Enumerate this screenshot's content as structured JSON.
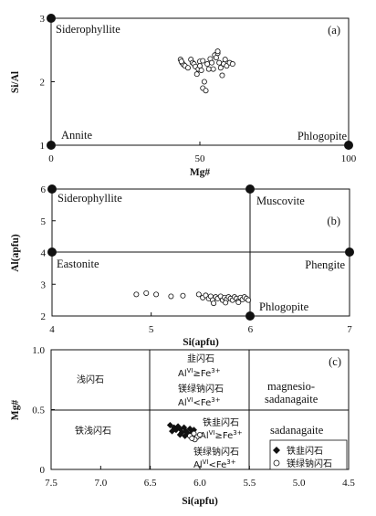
{
  "chart_data": [
    {
      "type": "scatter",
      "panel_label": "(a)",
      "xlabel": "Mg#",
      "ylabel": "Si/Al",
      "xlim": [
        0,
        100
      ],
      "ylim": [
        1,
        3
      ],
      "xticks": [
        "0",
        "50",
        "100"
      ],
      "yticks": [
        "1",
        "2",
        "3"
      ],
      "endmembers": [
        {
          "name": "Siderophyllite",
          "x": 0,
          "y": 3
        },
        {
          "name": "Annite",
          "x": 0,
          "y": 1
        },
        {
          "name": "Phlogopite",
          "x": 100,
          "y": 1
        }
      ],
      "points": [
        [
          43.5,
          2.35
        ],
        [
          44,
          2.3
        ],
        [
          44.5,
          2.27
        ],
        [
          43.8,
          2.32
        ],
        [
          45,
          2.25
        ],
        [
          46,
          2.22
        ],
        [
          47,
          2.35
        ],
        [
          47.5,
          2.3
        ],
        [
          48,
          2.28
        ],
        [
          48.5,
          2.24
        ],
        [
          49,
          2.12
        ],
        [
          49.5,
          2.2
        ],
        [
          50,
          2.32
        ],
        [
          50,
          2.25
        ],
        [
          50.5,
          2.18
        ],
        [
          51,
          2.33
        ],
        [
          51.5,
          2.0
        ],
        [
          51,
          1.9
        ],
        [
          52,
          1.86
        ],
        [
          52.5,
          2.28
        ],
        [
          53,
          2.2
        ],
        [
          53.5,
          2.36
        ],
        [
          54,
          2.3
        ],
        [
          54.5,
          2.2
        ],
        [
          55,
          2.42
        ],
        [
          55.5,
          2.38
        ],
        [
          56,
          2.45
        ],
        [
          56.5,
          2.3
        ],
        [
          57,
          2.22
        ],
        [
          57.5,
          2.1
        ],
        [
          58,
          2.28
        ],
        [
          58.5,
          2.35
        ],
        [
          59,
          2.25
        ],
        [
          60,
          2.3
        ],
        [
          61,
          2.28
        ],
        [
          56,
          2.48
        ]
      ]
    },
    {
      "type": "scatter",
      "panel_label": "(b)",
      "xlabel": "Si(apfu)",
      "ylabel": "Al(apfu)",
      "xlim": [
        4,
        7
      ],
      "ylim": [
        2,
        6
      ],
      "xticks": [
        "4",
        "5",
        "6",
        "7"
      ],
      "yticks": [
        "2",
        "3",
        "4",
        "5",
        "6"
      ],
      "endmembers": [
        {
          "name": "Siderophyllite",
          "x": 4,
          "y": 6
        },
        {
          "name": "Muscovite",
          "x": 6,
          "y": 6
        },
        {
          "name": "Eastonite",
          "x": 4,
          "y": 4
        },
        {
          "name": "Phengite",
          "x": 7,
          "y": 4
        },
        {
          "name": "Phlogopite",
          "x": 6,
          "y": 2
        }
      ],
      "points": [
        [
          4.85,
          2.68
        ],
        [
          4.95,
          2.72
        ],
        [
          5.05,
          2.68
        ],
        [
          5.2,
          2.62
        ],
        [
          5.32,
          2.64
        ],
        [
          5.48,
          2.68
        ],
        [
          5.52,
          2.58
        ],
        [
          5.55,
          2.65
        ],
        [
          5.58,
          2.55
        ],
        [
          5.6,
          2.62
        ],
        [
          5.62,
          2.5
        ],
        [
          5.65,
          2.6
        ],
        [
          5.67,
          2.55
        ],
        [
          5.7,
          2.62
        ],
        [
          5.72,
          2.5
        ],
        [
          5.74,
          2.58
        ],
        [
          5.76,
          2.52
        ],
        [
          5.78,
          2.6
        ],
        [
          5.8,
          2.55
        ],
        [
          5.82,
          2.5
        ],
        [
          5.84,
          2.6
        ],
        [
          5.86,
          2.55
        ],
        [
          5.88,
          2.48
        ],
        [
          5.9,
          2.58
        ],
        [
          5.92,
          2.52
        ],
        [
          5.94,
          2.6
        ],
        [
          5.96,
          2.55
        ],
        [
          5.98,
          2.5
        ],
        [
          5.63,
          2.4
        ],
        [
          5.75,
          2.42
        ],
        [
          5.88,
          2.43
        ]
      ]
    },
    {
      "type": "scatter",
      "panel_label": "(c)",
      "xlabel": "Si(apfu)",
      "ylabel": "Mg#",
      "xlim": [
        7.5,
        4.5
      ],
      "ylim": [
        0,
        1.0
      ],
      "xticks": [
        "7.5",
        "7.0",
        "6.5",
        "6.0",
        "5.5",
        "5.0",
        "4.5"
      ],
      "yticks": [
        "0",
        "0.5",
        "1.0"
      ],
      "region_labels": {
        "tremolite": "浅闪石",
        "ferro_tremolite": "铁浅闪石",
        "ed_label": "韭闪石",
        "ed_cond1_a": "Al",
        "ed_cond1_sup": "VI",
        "ed_cond1_b": "≥Fe",
        "ed_cond1_sup2": "3+",
        "mg_sad_label": "镁绿钠闪石",
        "mg_sad_a": "Al",
        "mg_sad_sup": "VI",
        "mg_sad_b": "<Fe",
        "mg_sad_sup2": "3+",
        "fe_ed_label": "铁韭闪石",
        "fe_ed_a": "Al",
        "fe_ed_sup": "VI",
        "fe_ed_b": "≥Fe",
        "fe_ed_sup2": "3+",
        "fe_sad_label": "镁绿钠闪石",
        "fe_sad_a": "Al",
        "fe_sad_sup": "VI",
        "fe_sad_b": "<Fe",
        "fe_sad_sup2": "3+",
        "magnesio_1": "magnesio-",
        "magnesio_2": "sadanagaite",
        "sadanagaite": "sadanagaite"
      },
      "legend": {
        "placement": "bottom-right",
        "items": [
          "铁韭闪石",
          "镁绿钠闪石"
        ]
      },
      "series": [
        {
          "name": "铁韭闪石",
          "marker": "diamond",
          "points": [
            [
              6.3,
              0.37
            ],
            [
              6.26,
              0.35
            ],
            [
              6.24,
              0.33
            ],
            [
              6.22,
              0.36
            ],
            [
              6.2,
              0.34
            ],
            [
              6.18,
              0.31
            ],
            [
              6.16,
              0.35
            ],
            [
              6.14,
              0.32
            ],
            [
              6.12,
              0.3
            ],
            [
              6.1,
              0.34
            ],
            [
              6.08,
              0.31
            ],
            [
              6.06,
              0.33
            ],
            [
              6.2,
              0.29
            ],
            [
              6.15,
              0.28
            ],
            [
              6.28,
              0.32
            ]
          ]
        },
        {
          "name": "镁绿钠闪石",
          "marker": "circle",
          "points": [
            [
              6.1,
              0.28
            ],
            [
              6.06,
              0.3
            ],
            [
              6.03,
              0.27
            ],
            [
              6.0,
              0.29
            ],
            [
              6.05,
              0.25
            ],
            [
              6.08,
              0.26
            ]
          ]
        }
      ]
    }
  ]
}
